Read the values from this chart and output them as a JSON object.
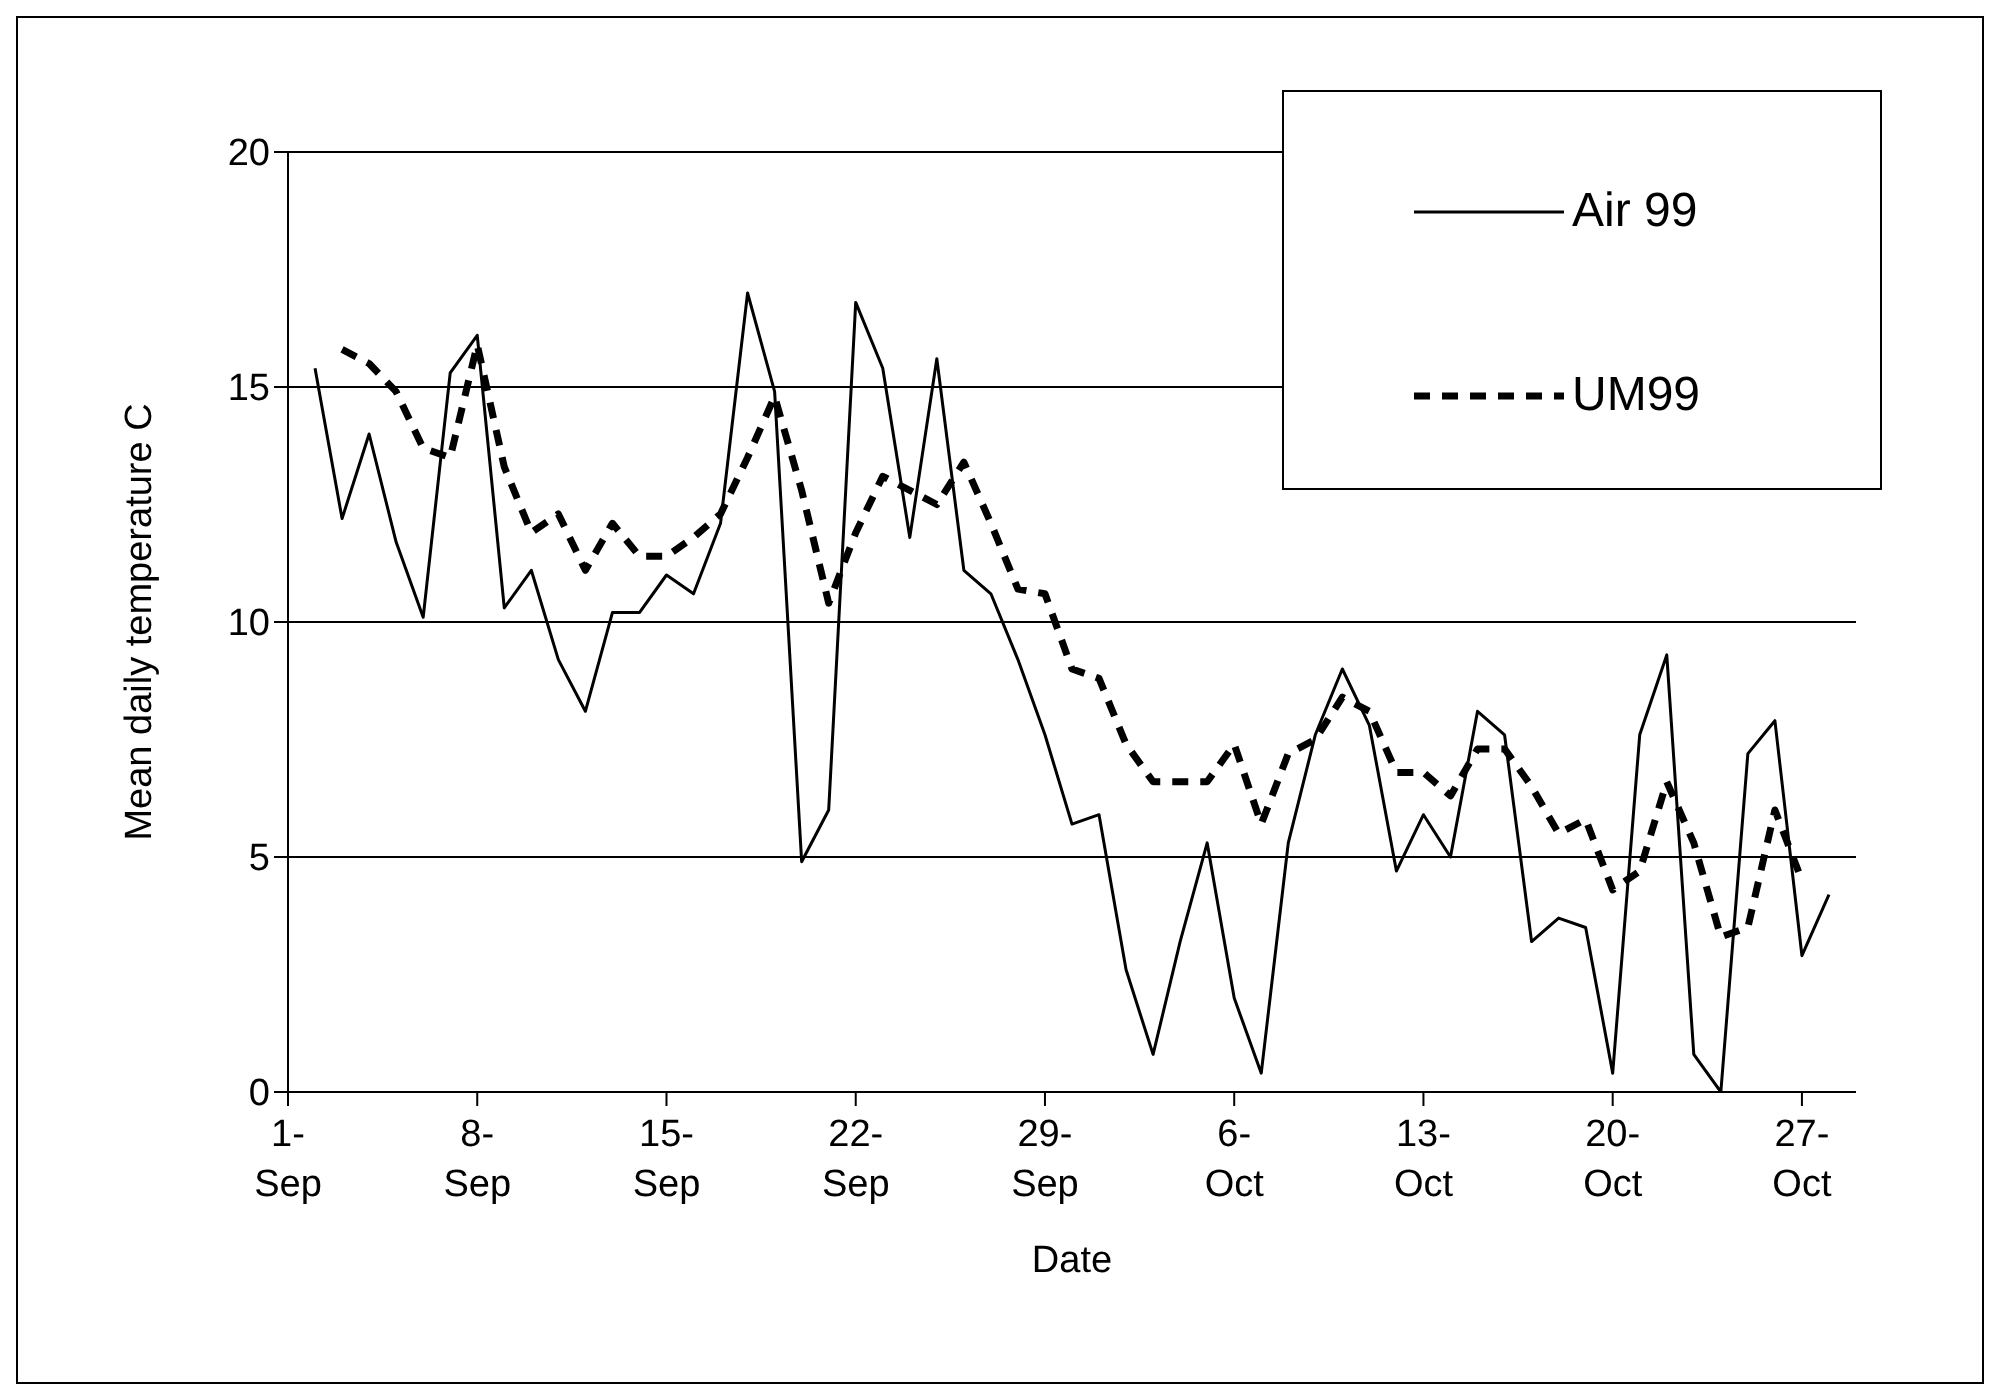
{
  "chart_data": {
    "type": "line",
    "xlabel": "Date",
    "ylabel": "Mean daily temperature C",
    "x": [
      "--09-02",
      "--09-03",
      "--09-04",
      "--09-05",
      "--09-06",
      "--09-07",
      "--09-08",
      "--09-09",
      "--09-10",
      "--09-11",
      "--09-12",
      "--09-13",
      "--09-14",
      "--09-15",
      "--09-16",
      "--09-17",
      "--09-18",
      "--09-19",
      "--09-20",
      "--09-21",
      "--09-22",
      "--09-23",
      "--09-24",
      "--09-25",
      "--09-26",
      "--09-27",
      "--09-28",
      "--09-29",
      "--09-30",
      "--10-01",
      "--10-02",
      "--10-03",
      "--10-04",
      "--10-05",
      "--10-06",
      "--10-07",
      "--10-08",
      "--10-09",
      "--10-10",
      "--10-11",
      "--10-12",
      "--10-13",
      "--10-14",
      "--10-15",
      "--10-16",
      "--10-17",
      "--10-18",
      "--10-19",
      "--10-20",
      "--10-21",
      "--10-22",
      "--10-23",
      "--10-24",
      "--10-25",
      "--10-26",
      "--10-27",
      "--10-28"
    ],
    "series": [
      {
        "name": "Air 99",
        "color": "#000000",
        "line_style": "solid",
        "values": [
          15.4,
          12.2,
          14.0,
          11.7,
          10.1,
          15.3,
          16.1,
          10.3,
          11.1,
          9.2,
          8.1,
          10.2,
          10.2,
          11.0,
          10.6,
          12.1,
          17.0,
          14.9,
          4.9,
          6.0,
          16.8,
          15.4,
          11.8,
          15.6,
          11.1,
          10.6,
          9.2,
          7.6,
          5.7,
          5.9,
          2.6,
          0.8,
          3.2,
          5.3,
          2.0,
          0.4,
          5.3,
          7.6,
          9.0,
          7.8,
          4.7,
          5.9,
          5.0,
          8.1,
          7.6,
          3.2,
          3.7,
          3.5,
          0.4,
          7.6,
          9.3,
          0.8,
          0.0,
          7.2,
          7.9,
          2.9,
          4.2
        ]
      },
      {
        "name": "UM99",
        "color": "#000000",
        "line_style": "dashed",
        "values": [
          null,
          15.8,
          15.5,
          14.9,
          13.7,
          13.5,
          15.9,
          13.3,
          11.9,
          12.3,
          11.1,
          12.1,
          11.4,
          11.4,
          11.8,
          12.3,
          13.5,
          14.8,
          12.8,
          10.4,
          11.9,
          13.1,
          12.8,
          12.5,
          13.4,
          12.1,
          10.7,
          10.6,
          9.0,
          8.8,
          7.4,
          6.6,
          6.6,
          6.6,
          7.4,
          5.7,
          7.2,
          7.5,
          8.4,
          8.1,
          6.8,
          6.8,
          6.3,
          7.3,
          7.3,
          6.5,
          5.5,
          5.8,
          4.3,
          4.7,
          6.6,
          5.3,
          3.3,
          3.5,
          6.0,
          4.5,
          null
        ]
      }
    ],
    "xlim": [
      "--09-01",
      "--10-29"
    ],
    "xticks": [
      {
        "value": "--09-01",
        "label": "1-Sep"
      },
      {
        "value": "--09-08",
        "label": "8-Sep"
      },
      {
        "value": "--09-15",
        "label": "15-Sep"
      },
      {
        "value": "--09-22",
        "label": "22-Sep"
      },
      {
        "value": "--09-29",
        "label": "29-Sep"
      },
      {
        "value": "--10-06",
        "label": "6-Oct"
      },
      {
        "value": "--10-13",
        "label": "13-Oct"
      },
      {
        "value": "--10-20",
        "label": "20-Oct"
      },
      {
        "value": "--10-27",
        "label": "27-Oct"
      }
    ],
    "ylim": [
      0,
      20
    ],
    "yticks": [
      0,
      5,
      10,
      15,
      20
    ],
    "grid": "y",
    "legend": "top right",
    "marker": "none"
  }
}
